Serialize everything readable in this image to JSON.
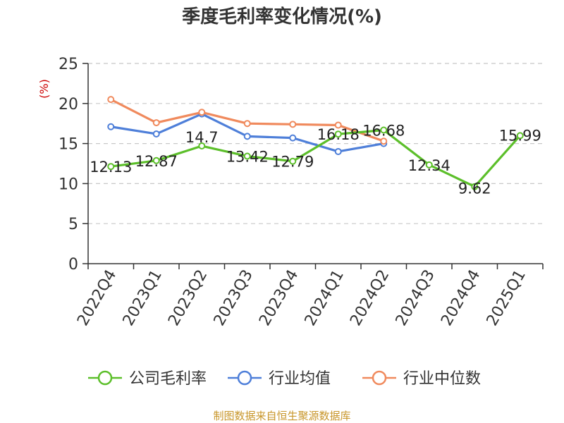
{
  "chart_data": {
    "type": "line",
    "title": "季度毛利率变化情况(%)",
    "ylabel": "(%)",
    "ylim": [
      0,
      25
    ],
    "yticks": [
      0,
      5,
      10,
      15,
      20,
      25
    ],
    "grid": true,
    "legend_position": "bottom",
    "categories": [
      "2022Q4",
      "2023Q1",
      "2023Q2",
      "2023Q3",
      "2023Q4",
      "2024Q1",
      "2024Q2",
      "2024Q3",
      "2024Q4",
      "2025Q1"
    ],
    "series": [
      {
        "name": "公司毛利率",
        "color": "#5cbf2a",
        "values": [
          12.13,
          12.87,
          14.7,
          13.42,
          12.79,
          16.18,
          16.68,
          12.34,
          9.62,
          15.99
        ],
        "data_labels": [
          "12.13",
          "12.87",
          "14.7",
          "13.42",
          "12.79",
          "16.18",
          "16.68",
          "12.34",
          "9.62",
          "15.99"
        ]
      },
      {
        "name": "行业均值",
        "color": "#4e7fd9",
        "values": [
          17.1,
          16.2,
          18.7,
          15.9,
          15.7,
          14.0,
          15.0,
          null,
          null,
          null
        ]
      },
      {
        "name": "行业中位数",
        "color": "#f08a5d",
        "values": [
          20.5,
          17.6,
          18.9,
          17.5,
          17.4,
          17.3,
          15.3,
          null,
          null,
          null
        ]
      }
    ]
  },
  "source_text": "制图数据来自恒生聚源数据库",
  "colors": {
    "axis": "#333333",
    "grid": "#c8c8c8",
    "ylabel": "#cc0000",
    "source": "#c8962a"
  }
}
